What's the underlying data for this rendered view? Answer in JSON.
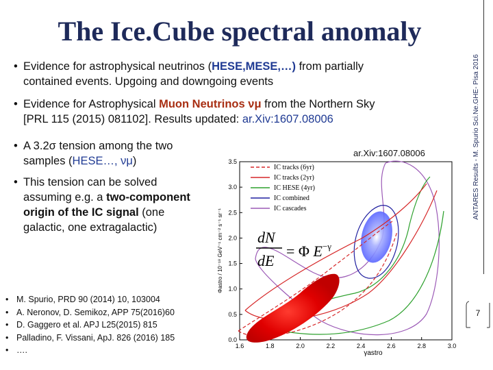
{
  "slide": {
    "title": "The Ice.Cube spectral anomaly",
    "side_label": "ANTARES Results - M. Spurio     Sci.Ne.GHE- Pisa 2016",
    "page_number": "7"
  },
  "bullets": {
    "b1": {
      "pre": "Evidence for astrophysical neutrinos (",
      "hl": "HESE,MESE,…)",
      "post": " from partially",
      "line2": "contained events. Upgoing and downgoing events"
    },
    "b2": {
      "pre": "Evidence for Astrophysical ",
      "hl": "Muon Neutrinos νμ",
      "post": " from the Northern Sky",
      "line2_pre": "[PRL 115 (2015) 081102]. Results updated: ",
      "line2_link": "ar.Xiv:1607.08006"
    },
    "b3": {
      "pre": "A 3.2σ tension among the two",
      "line2_pre": "samples (",
      "line2_hl": "HESE…, νμ",
      "line2_post": ")"
    },
    "b4": {
      "line1": "This tension can be solved",
      "line2_pre": "assuming e.g. a ",
      "line2_bold": "two-component",
      "line3_bold": "origin of the IC signal",
      "line3_post": " (one",
      "line4": "galactic, one extragalactic)"
    }
  },
  "references": [
    "M. Spurio, PRD 90 (2014) 10, 103004",
    "A. Neronov, D. Semikoz, APP 75(2016)60",
    "D. Gaggero  et al. APJ L25(2015) 815",
    "Palladino, F. Vissani, ApJ. 826 (2016) 185",
    "…."
  ],
  "arxiv_label": "ar.Xiv:1607.08006",
  "chart_data": {
    "type": "contour",
    "xlabel": "γastro",
    "ylabel": "Φastro / 10⁻¹⁸ GeV⁻¹ cm⁻² s⁻¹ sr⁻¹",
    "xlim": [
      1.6,
      3.0
    ],
    "ylim": [
      0.0,
      3.5
    ],
    "x_ticks": [
      "1.6",
      "1.8",
      "2.0",
      "2.2",
      "2.4",
      "2.6",
      "2.8",
      "3.0"
    ],
    "y_ticks": [
      "0.0",
      "0.5",
      "1.0",
      "1.5",
      "2.0",
      "2.5",
      "3.0",
      "3.5"
    ],
    "formula": "dN/dE = Φ E^−γ",
    "legend": [
      {
        "name": "IC tracks (6yr)",
        "color": "#d62728",
        "dash": "dashed"
      },
      {
        "name": "IC tracks (2yr)",
        "color": "#d62728",
        "dash": "solid"
      },
      {
        "name": "IC HESE (4yr)",
        "color": "#2ca02c",
        "dash": "solid"
      },
      {
        "name": "IC combined",
        "color": "#1f1f9f",
        "dash": "solid"
      },
      {
        "name": "IC cascades",
        "color": "#9b59b6",
        "dash": "solid"
      }
    ],
    "regions": [
      {
        "series": "IC tracks (6yr)",
        "best_fit": [
          1.95,
          0.8
        ]
      },
      {
        "series": "IC combined",
        "best_fit": [
          2.55,
          2.0
        ]
      }
    ]
  },
  "colors": {
    "title": "#1e2a5a",
    "highlight_blue": "#1f3a93",
    "highlight_red": "#a82e12",
    "red_region": "#d40000",
    "blue_region": "#6f7bff"
  }
}
